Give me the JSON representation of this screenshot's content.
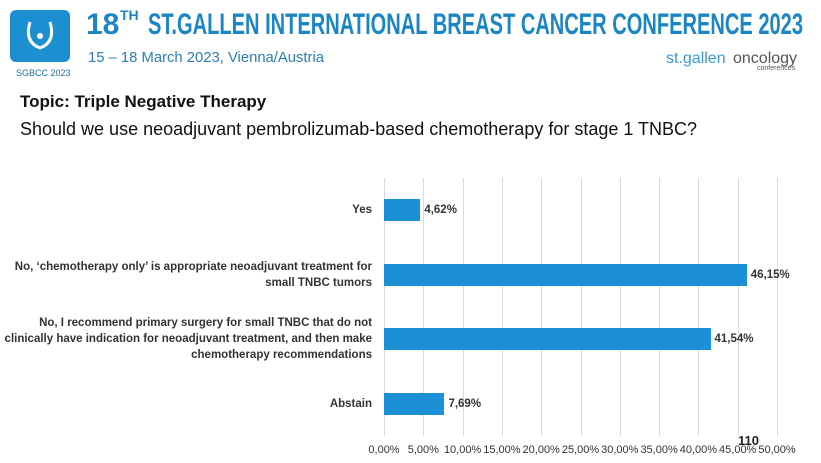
{
  "header": {
    "title_number": "18",
    "title_suffix": "TH",
    "title": "ST.GALLEN INTERNATIONAL BREAST CANCER CONFERENCE 2023",
    "dates": "15 – 18 March 2023, Vienna/Austria",
    "logo": "SGBCC 2023",
    "brand_a": "st.gallen",
    "brand_b": "oncology",
    "brand_c": "conferences"
  },
  "topic": "Topic: Triple Negative Therapy",
  "question": "Should we use neoadjuvant pembrolizumab-based chemotherapy for stage 1 TNBC?",
  "slide_number": "110",
  "chart_data": {
    "type": "bar",
    "orientation": "horizontal",
    "color": "#1c90d6",
    "grid": true,
    "categories": [
      "Yes",
      "No, ‘chemotherapy only’ is appropriate neoadjuvant treatment for small TNBC tumors",
      "No, I recommend primary surgery for small TNBC that do not clinically have indication for neoadjuvant treatment, and then make chemotherapy recommendations",
      "Abstain"
    ],
    "values": [
      4.62,
      46.15,
      41.54,
      7.69
    ],
    "value_labels": [
      "4,62%",
      "46,15%",
      "41,54%",
      "7,69%"
    ],
    "xlim": [
      0,
      50
    ],
    "xticks": [
      {
        "value": 0,
        "label": "0,00%"
      },
      {
        "value": 5,
        "label": "5,00%"
      },
      {
        "value": 10,
        "label": "10,00%"
      },
      {
        "value": 15,
        "label": "15,00%"
      },
      {
        "value": 20,
        "label": "20,00%"
      },
      {
        "value": 25,
        "label": "25,00%"
      },
      {
        "value": 30,
        "label": "30,00%"
      },
      {
        "value": 35,
        "label": "35,00%"
      },
      {
        "value": 40,
        "label": "40,00%"
      },
      {
        "value": 45,
        "label": "45,00%"
      },
      {
        "value": 50,
        "label": "50,00%"
      }
    ]
  }
}
